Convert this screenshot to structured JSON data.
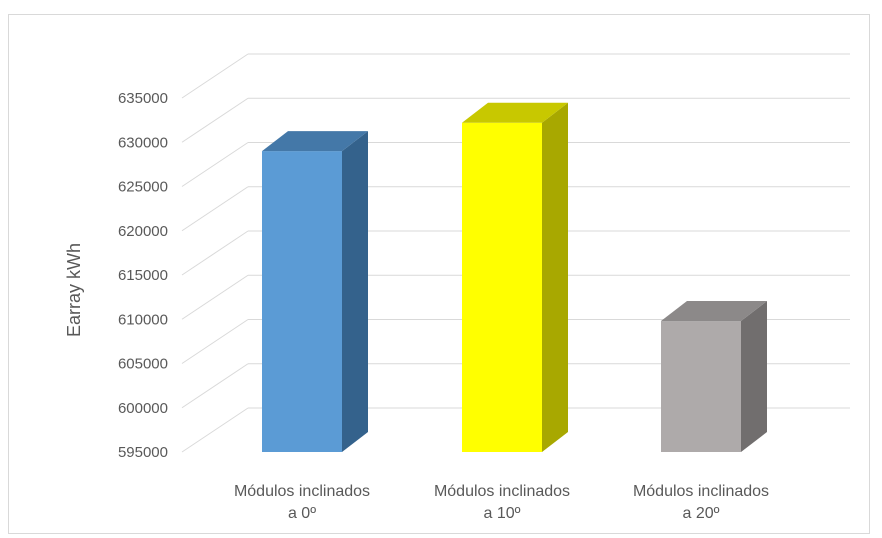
{
  "chart_data": {
    "type": "bar",
    "style": "3d-column",
    "title": "",
    "xlabel": "",
    "ylabel": "Earray kWh",
    "ylim": [
      595000,
      635000
    ],
    "yticks": [
      595000,
      600000,
      605000,
      610000,
      615000,
      620000,
      625000,
      630000,
      635000
    ],
    "grid": true,
    "legend": "none",
    "categories": [
      [
        "Módulos inclinados",
        "a 0º"
      ],
      [
        "Módulos inclinados",
        "a 10º"
      ],
      [
        "Módulos inclinados",
        "a 20º"
      ]
    ],
    "values": [
      629000,
      632200,
      609800
    ],
    "colors": [
      {
        "front": "#5b9bd5",
        "side": "#34628c",
        "top": "#4478a8"
      },
      {
        "front": "#ffff00",
        "side": "#a8a800",
        "top": "#c8c800"
      },
      {
        "front": "#aeaaaa",
        "side": "#716e6e",
        "top": "#8c8989"
      }
    ]
  }
}
